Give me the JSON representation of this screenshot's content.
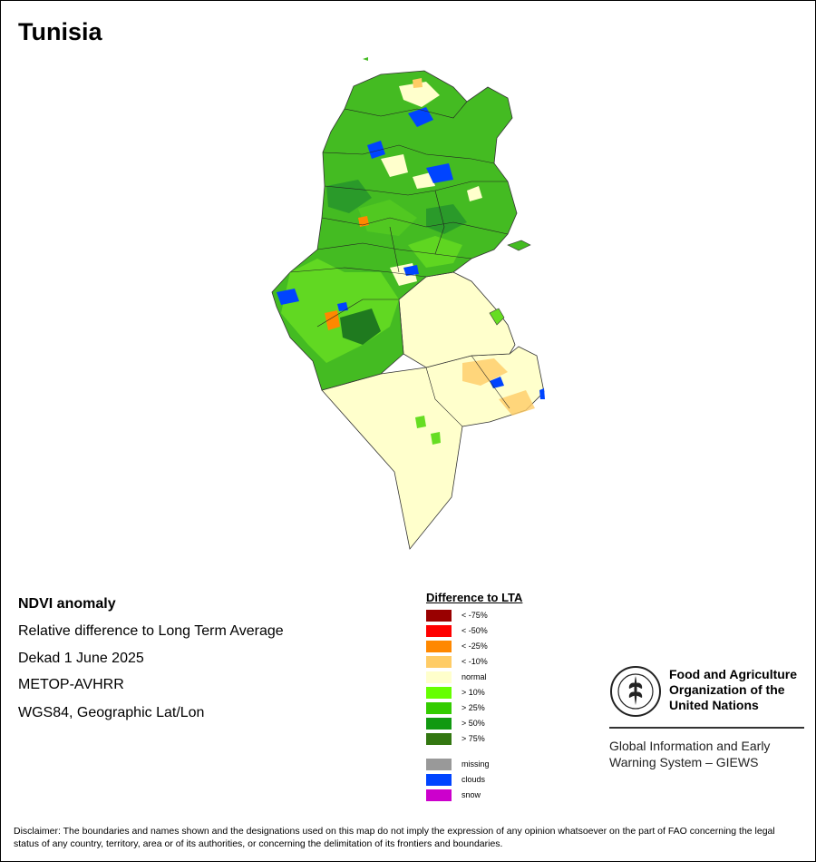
{
  "title": "Tunisia",
  "info": {
    "product": "NDVI anomaly",
    "description": "Relative difference to Long Term Average",
    "period": "Dekad 1 June 2025",
    "sensor": "METOP-AVHRR",
    "projection": "WGS84, Geographic Lat/Lon"
  },
  "legend": {
    "title": "Difference to LTA",
    "items": [
      {
        "label": "< -75%",
        "color": "#990000"
      },
      {
        "label": "< -50%",
        "color": "#ff0000"
      },
      {
        "label": "< -25%",
        "color": "#ff8800"
      },
      {
        "label": "< -10%",
        "color": "#ffcc66"
      },
      {
        "label": "normal",
        "color": "#ffffcc"
      },
      {
        "label": "> 10%",
        "color": "#66ff00"
      },
      {
        "label": "> 25%",
        "color": "#33cc00"
      },
      {
        "label": "> 50%",
        "color": "#119911"
      },
      {
        "label": "> 75%",
        "color": "#337711"
      }
    ],
    "extra": [
      {
        "label": "missing",
        "color": "#999999"
      },
      {
        "label": "clouds",
        "color": "#0044ff"
      },
      {
        "label": "snow",
        "color": "#cc00cc"
      }
    ]
  },
  "fao": {
    "line1": "Food and Agriculture",
    "line2": "Organization of the",
    "line3": "United Nations",
    "giews1": "Global Information and Early",
    "giews2": "Warning System – GIEWS"
  },
  "disclaimer": "Disclaimer: The boundaries and names shown and the designations used on this map do not imply the expression of any opinion whatsoever on the part of FAO concerning the legal status of any country, territory, area or of its authorities, or concerning the delimitation of its frontiers and boundaries."
}
